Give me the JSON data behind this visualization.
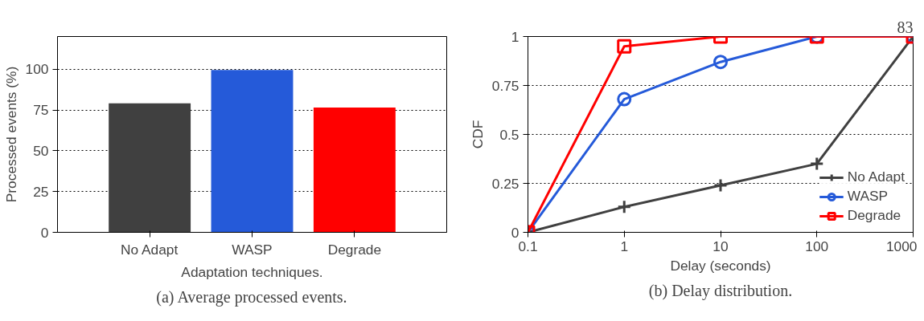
{
  "chart_data": [
    {
      "type": "bar",
      "title": "(a) Average processed events.",
      "xlabel": "Adaptation techniques.",
      "ylabel": "Processed events (%)",
      "categories": [
        "No Adapt",
        "WASP",
        "Degrade"
      ],
      "values": [
        79,
        99.5,
        76.5
      ],
      "colors": [
        "#404040",
        "#255ad9",
        "#ff0000"
      ],
      "ylim": [
        0,
        120
      ],
      "yticks": [
        0,
        25,
        50,
        75,
        100
      ],
      "grid": "y"
    },
    {
      "type": "line",
      "title": "(b) Delay distribution.",
      "xlabel": "Delay (seconds)",
      "ylabel": "CDF",
      "annotations": [
        "83"
      ],
      "x": [
        0.1,
        1,
        10,
        100,
        1000
      ],
      "log": "x",
      "xlim": [
        0.1,
        1000
      ],
      "xticks": [
        0.1,
        1,
        10,
        100,
        1000
      ],
      "ylim": [
        0,
        1
      ],
      "yticks": [
        0,
        0.25,
        0.5,
        0.75,
        1
      ],
      "grid": "y",
      "legend": "bottom right",
      "series": [
        {
          "name": "No Adapt",
          "color": "#404040",
          "marker": "cross",
          "values": [
            0,
            0.13,
            0.24,
            0.35,
            1
          ]
        },
        {
          "name": "WASP",
          "color": "#255ad9",
          "marker": "circle",
          "values": [
            0,
            0.68,
            0.87,
            1,
            1
          ]
        },
        {
          "name": "Degrade",
          "color": "#ff0000",
          "marker": "square",
          "values": [
            0,
            0.95,
            1,
            1,
            1
          ]
        }
      ]
    }
  ]
}
